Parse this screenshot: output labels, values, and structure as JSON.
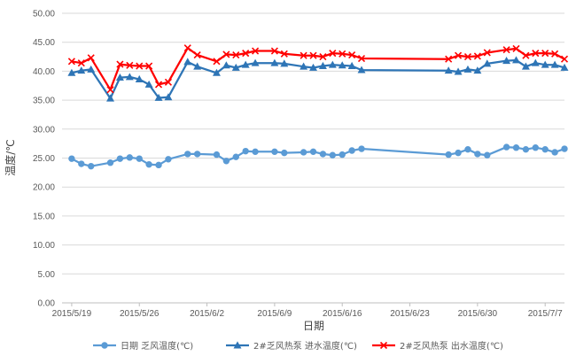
{
  "chart_data": {
    "type": "line",
    "xlabel": "日期",
    "ylabel": "温度/℃",
    "ylim": [
      0,
      50
    ],
    "y_ticks": [
      "0.00",
      "5.00",
      "10.00",
      "15.00",
      "20.00",
      "25.00",
      "30.00",
      "35.00",
      "40.00",
      "45.00",
      "50.00"
    ],
    "x_ticks": [
      {
        "date": "2015-05-19",
        "label": "2015/5/19"
      },
      {
        "date": "2015-05-26",
        "label": "2015/5/26"
      },
      {
        "date": "2015-06-02",
        "label": "2015/6/2"
      },
      {
        "date": "2015-06-09",
        "label": "2015/6/9"
      },
      {
        "date": "2015-06-16",
        "label": "2015/6/16"
      },
      {
        "date": "2015-06-23",
        "label": "2015/6/23"
      },
      {
        "date": "2015-06-30",
        "label": "2015/6/30"
      },
      {
        "date": "2015-07-07",
        "label": "2015/7/7"
      }
    ],
    "xlim": [
      "2015-05-18",
      "2015-07-09"
    ],
    "grid": "horizontal",
    "legend_position": "bottom",
    "series": [
      {
        "name": "日期 乏风温度(℃)",
        "color": "#5B9BD5",
        "marker": "circle",
        "x": [
          "2015-05-19",
          "2015-05-20",
          "2015-05-21",
          "2015-05-23",
          "2015-05-24",
          "2015-05-25",
          "2015-05-26",
          "2015-05-27",
          "2015-05-28",
          "2015-05-29",
          "2015-05-31",
          "2015-06-01",
          "2015-06-03",
          "2015-06-04",
          "2015-06-05",
          "2015-06-06",
          "2015-06-07",
          "2015-06-09",
          "2015-06-10",
          "2015-06-12",
          "2015-06-13",
          "2015-06-14",
          "2015-06-15",
          "2015-06-16",
          "2015-06-17",
          "2015-06-18",
          "2015-06-27",
          "2015-06-28",
          "2015-06-29",
          "2015-06-30",
          "2015-07-01",
          "2015-07-03",
          "2015-07-04",
          "2015-07-05",
          "2015-07-06",
          "2015-07-07",
          "2015-07-08",
          "2015-07-09"
        ],
        "values": [
          24.9,
          24.0,
          23.6,
          24.2,
          24.9,
          25.1,
          24.9,
          23.9,
          23.8,
          24.8,
          25.7,
          25.7,
          25.6,
          24.5,
          25.2,
          26.2,
          26.1,
          26.1,
          25.9,
          26.0,
          26.1,
          25.7,
          25.5,
          25.6,
          26.3,
          26.6,
          25.6,
          25.9,
          26.5,
          25.7,
          25.5,
          26.9,
          26.8,
          26.5,
          26.8,
          26.5,
          26.0,
          26.6
        ]
      },
      {
        "name": "2#乏风热泵 进水温度(℃)",
        "color": "#2E75B6",
        "marker": "triangle",
        "x": [
          "2015-05-19",
          "2015-05-20",
          "2015-05-21",
          "2015-05-23",
          "2015-05-24",
          "2015-05-25",
          "2015-05-26",
          "2015-05-27",
          "2015-05-28",
          "2015-05-29",
          "2015-05-31",
          "2015-06-01",
          "2015-06-03",
          "2015-06-04",
          "2015-06-05",
          "2015-06-06",
          "2015-06-07",
          "2015-06-09",
          "2015-06-10",
          "2015-06-12",
          "2015-06-13",
          "2015-06-14",
          "2015-06-15",
          "2015-06-16",
          "2015-06-17",
          "2015-06-18",
          "2015-06-27",
          "2015-06-28",
          "2015-06-29",
          "2015-06-30",
          "2015-07-01",
          "2015-07-03",
          "2015-07-04",
          "2015-07-05",
          "2015-07-06",
          "2015-07-07",
          "2015-07-08",
          "2015-07-09"
        ],
        "values": [
          39.7,
          40.1,
          40.3,
          35.3,
          38.9,
          39.0,
          38.6,
          37.7,
          35.4,
          35.5,
          41.6,
          40.8,
          39.7,
          41.0,
          40.6,
          41.1,
          41.4,
          41.4,
          41.3,
          40.8,
          40.6,
          40.9,
          41.1,
          41.0,
          40.9,
          40.2,
          40.1,
          39.9,
          40.3,
          40.1,
          41.3,
          41.8,
          41.9,
          40.8,
          41.4,
          41.1,
          41.1,
          40.6
        ]
      },
      {
        "name": "2#乏风热泵 出水温度(℃)",
        "color": "#FF0000",
        "marker": "x",
        "x": [
          "2015-05-19",
          "2015-05-20",
          "2015-05-21",
          "2015-05-23",
          "2015-05-24",
          "2015-05-25",
          "2015-05-26",
          "2015-05-27",
          "2015-05-28",
          "2015-05-29",
          "2015-05-31",
          "2015-06-01",
          "2015-06-03",
          "2015-06-04",
          "2015-06-05",
          "2015-06-06",
          "2015-06-07",
          "2015-06-09",
          "2015-06-10",
          "2015-06-12",
          "2015-06-13",
          "2015-06-14",
          "2015-06-15",
          "2015-06-16",
          "2015-06-17",
          "2015-06-18",
          "2015-06-27",
          "2015-06-28",
          "2015-06-29",
          "2015-06-30",
          "2015-07-01",
          "2015-07-03",
          "2015-07-04",
          "2015-07-05",
          "2015-07-06",
          "2015-07-07",
          "2015-07-08",
          "2015-07-09"
        ],
        "values": [
          41.7,
          41.4,
          42.3,
          36.8,
          41.2,
          41.0,
          40.9,
          40.9,
          37.7,
          38.1,
          44.0,
          42.8,
          41.7,
          42.9,
          42.8,
          43.1,
          43.5,
          43.5,
          43.0,
          42.7,
          42.7,
          42.5,
          43.1,
          43.0,
          42.8,
          42.2,
          42.1,
          42.7,
          42.5,
          42.6,
          43.2,
          43.7,
          43.9,
          42.7,
          43.1,
          43.1,
          43.0,
          42.1
        ]
      }
    ]
  }
}
